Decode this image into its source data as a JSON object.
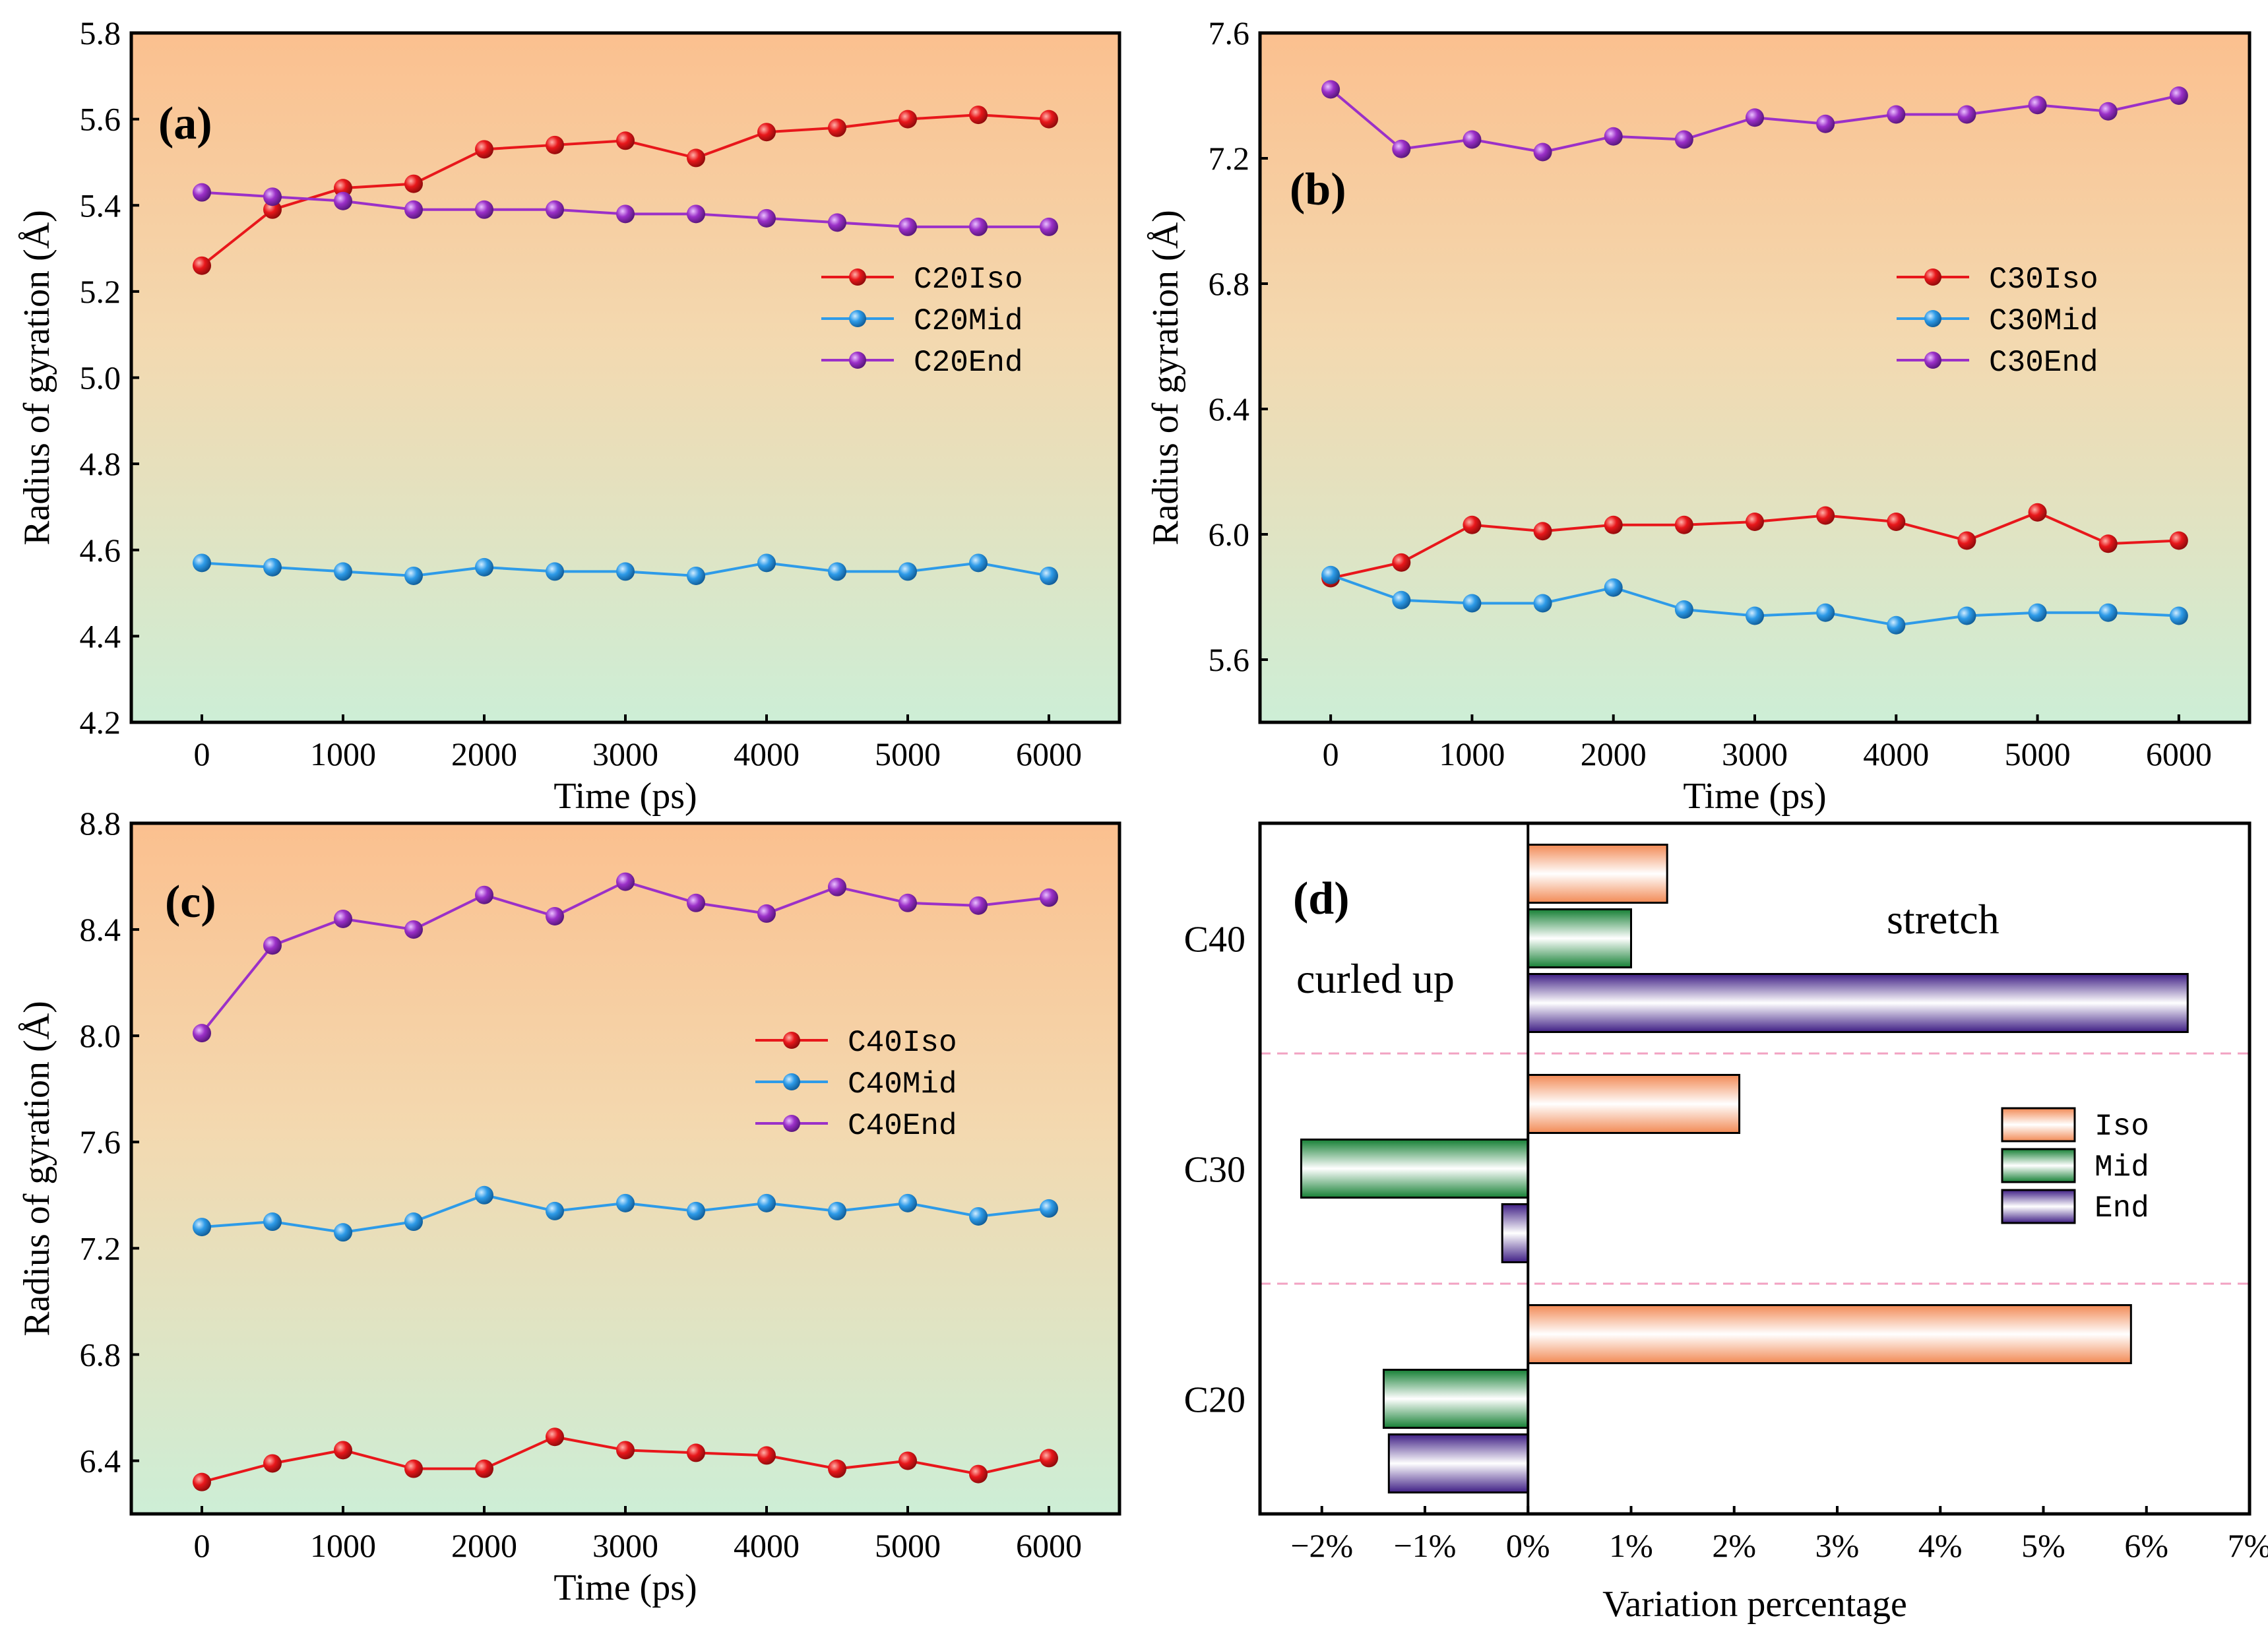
{
  "chart_data": [
    {
      "type": "line",
      "panel_label": "(a)",
      "xlabel": "Time (ps)",
      "ylabel": "Radius of gyration (Å)",
      "xlim": [
        -500,
        6500
      ],
      "ylim": [
        4.2,
        5.8
      ],
      "xticks": [
        0,
        1000,
        2000,
        3000,
        4000,
        5000,
        6000
      ],
      "yticks": [
        4.2,
        4.4,
        4.6,
        4.8,
        5.0,
        5.2,
        5.4,
        5.6,
        5.8
      ],
      "x": [
        0,
        500,
        1000,
        1500,
        2000,
        2500,
        3000,
        3500,
        4000,
        4500,
        5000,
        5500,
        6000
      ],
      "legend_position": "right",
      "series": [
        {
          "name": "C20Iso",
          "color": "#e8171b",
          "values": [
            5.26,
            5.39,
            5.44,
            5.45,
            5.53,
            5.54,
            5.55,
            5.51,
            5.57,
            5.58,
            5.6,
            5.61,
            5.6
          ]
        },
        {
          "name": "C20Mid",
          "color": "#2e9be8",
          "values": [
            4.57,
            4.56,
            4.55,
            4.54,
            4.56,
            4.55,
            4.55,
            4.54,
            4.57,
            4.55,
            4.55,
            4.57,
            4.54
          ]
        },
        {
          "name": "C20End",
          "color": "#9b30c8",
          "values": [
            5.43,
            5.42,
            5.41,
            5.39,
            5.39,
            5.39,
            5.38,
            5.38,
            5.37,
            5.36,
            5.35,
            5.35,
            5.35
          ]
        }
      ]
    },
    {
      "type": "line",
      "panel_label": "(b)",
      "xlabel": "Time (ps)",
      "ylabel": "Radius of gyration (Å)",
      "xlim": [
        -500,
        6500
      ],
      "ylim": [
        5.4,
        7.6
      ],
      "xticks": [
        0,
        1000,
        2000,
        3000,
        4000,
        5000,
        6000
      ],
      "yticks": [
        5.6,
        6.0,
        6.4,
        6.8,
        7.2,
        7.6
      ],
      "x": [
        0,
        500,
        1000,
        1500,
        2000,
        2500,
        3000,
        3500,
        4000,
        4500,
        5000,
        5500,
        6000
      ],
      "legend_position": "right",
      "series": [
        {
          "name": "C30Iso",
          "color": "#e8171b",
          "values": [
            5.86,
            5.91,
            6.03,
            6.01,
            6.03,
            6.03,
            6.04,
            6.06,
            6.04,
            5.98,
            6.07,
            5.97,
            5.98
          ]
        },
        {
          "name": "C30Mid",
          "color": "#2e9be8",
          "values": [
            5.87,
            5.79,
            5.78,
            5.78,
            5.83,
            5.76,
            5.74,
            5.75,
            5.71,
            5.74,
            5.75,
            5.75,
            5.74
          ]
        },
        {
          "name": "C30End",
          "color": "#9b30c8",
          "values": [
            7.42,
            7.23,
            7.26,
            7.22,
            7.27,
            7.26,
            7.33,
            7.31,
            7.34,
            7.34,
            7.37,
            7.35,
            7.4
          ]
        }
      ]
    },
    {
      "type": "line",
      "panel_label": "(c)",
      "xlabel": "Time (ps)",
      "ylabel": "Radius of gyration (Å)",
      "xlim": [
        -500,
        6500
      ],
      "ylim": [
        6.2,
        8.8
      ],
      "xticks": [
        0,
        1000,
        2000,
        3000,
        4000,
        5000,
        6000
      ],
      "yticks": [
        6.4,
        6.8,
        7.2,
        7.6,
        8.0,
        8.4,
        8.8
      ],
      "x": [
        0,
        500,
        1000,
        1500,
        2000,
        2500,
        3000,
        3500,
        4000,
        4500,
        5000,
        5500,
        6000
      ],
      "legend_position": "right",
      "series": [
        {
          "name": "C40Iso",
          "color": "#e8171b",
          "values": [
            6.32,
            6.39,
            6.44,
            6.37,
            6.37,
            6.49,
            6.44,
            6.43,
            6.42,
            6.37,
            6.4,
            6.35,
            6.41
          ]
        },
        {
          "name": "C40Mid",
          "color": "#2e9be8",
          "values": [
            7.28,
            7.3,
            7.26,
            7.3,
            7.4,
            7.34,
            7.37,
            7.34,
            7.37,
            7.34,
            7.37,
            7.32,
            7.35
          ]
        },
        {
          "name": "C40End",
          "color": "#9b30c8",
          "values": [
            8.01,
            8.34,
            8.44,
            8.4,
            8.53,
            8.45,
            8.58,
            8.5,
            8.46,
            8.56,
            8.5,
            8.49,
            8.52
          ]
        }
      ]
    },
    {
      "type": "bar",
      "orientation": "horizontal",
      "panel_label": "(d)",
      "xlabel": "Variation percentage",
      "xlim": [
        -2.6,
        7.0
      ],
      "xticks": [
        -2,
        -1,
        0,
        1,
        2,
        3,
        4,
        5,
        6,
        7
      ],
      "xtick_labels": [
        "−2%",
        "−1%",
        "0%",
        "1%",
        "2%",
        "3%",
        "4%",
        "5%",
        "6%",
        "7%"
      ],
      "categories": [
        "C40",
        "C30",
        "C20"
      ],
      "series": [
        {
          "name": "Iso",
          "color": "#f6925e",
          "values": [
            1.35,
            2.05,
            5.85
          ]
        },
        {
          "name": "Mid",
          "color": "#1e8a3c",
          "values": [
            1.0,
            -2.2,
            -1.4
          ]
        },
        {
          "name": "End",
          "color": "#4a2a8c",
          "values": [
            6.4,
            -0.25,
            -1.35
          ]
        }
      ],
      "annotations": [
        "curled up",
        "stretch"
      ],
      "legend_position": "right"
    }
  ]
}
